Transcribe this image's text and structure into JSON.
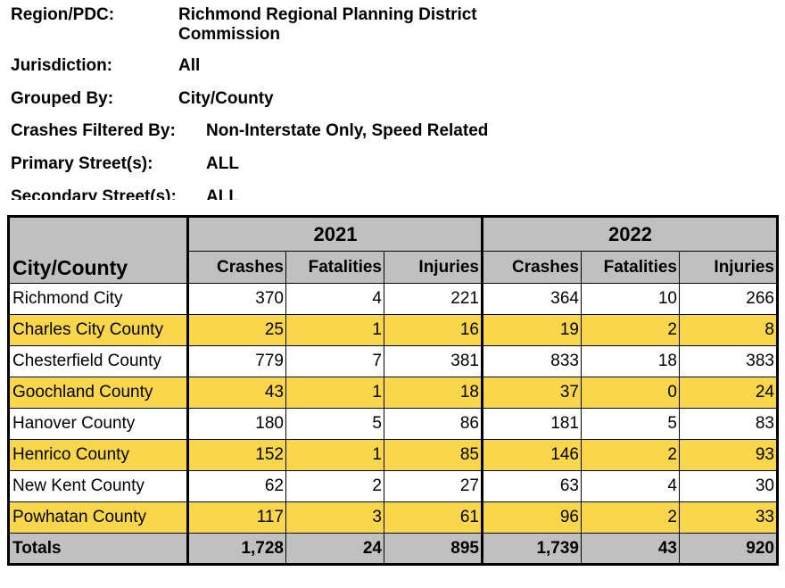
{
  "filters": [
    {
      "label": "Region/PDC:",
      "value": "Richmond Regional Planning District Commission"
    },
    {
      "label": "Jurisdiction:",
      "value": "All"
    },
    {
      "label": "Grouped By:",
      "value": "City/County"
    },
    {
      "label": "Crashes Filtered By:",
      "value": "Non-Interstate Only, Speed Related"
    },
    {
      "label": "Primary Street(s):",
      "value": "ALL"
    },
    {
      "label": "Secondary Street(s):",
      "value": "ALL"
    }
  ],
  "table": {
    "name_header": "City/County",
    "years": [
      "2021",
      "2022"
    ],
    "columns": [
      "Crashes",
      "Fatalities",
      "Injuries",
      "Crashes",
      "Fatalities",
      "Injuries"
    ],
    "rows": [
      {
        "name": "Richmond City",
        "values": [
          "370",
          "4",
          "221",
          "364",
          "10",
          "266"
        ]
      },
      {
        "name": "Charles City County",
        "values": [
          "25",
          "1",
          "16",
          "19",
          "2",
          "8"
        ]
      },
      {
        "name": "Chesterfield County",
        "values": [
          "779",
          "7",
          "381",
          "833",
          "18",
          "383"
        ]
      },
      {
        "name": "Goochland County",
        "values": [
          "43",
          "1",
          "18",
          "37",
          "0",
          "24"
        ]
      },
      {
        "name": "Hanover County",
        "values": [
          "180",
          "5",
          "86",
          "181",
          "5",
          "83"
        ]
      },
      {
        "name": "Henrico County",
        "values": [
          "152",
          "1",
          "85",
          "146",
          "2",
          "93"
        ]
      },
      {
        "name": "New Kent County",
        "values": [
          "62",
          "2",
          "27",
          "63",
          "4",
          "30"
        ]
      },
      {
        "name": "Powhatan County",
        "values": [
          "117",
          "3",
          "61",
          "96",
          "2",
          "33"
        ]
      }
    ],
    "totals": {
      "name": "Totals",
      "values": [
        "1,728",
        "24",
        "895",
        "1,739",
        "43",
        "920"
      ]
    }
  },
  "colors": {
    "highlight": "#f9d64a",
    "header": "#c0c0c0"
  }
}
